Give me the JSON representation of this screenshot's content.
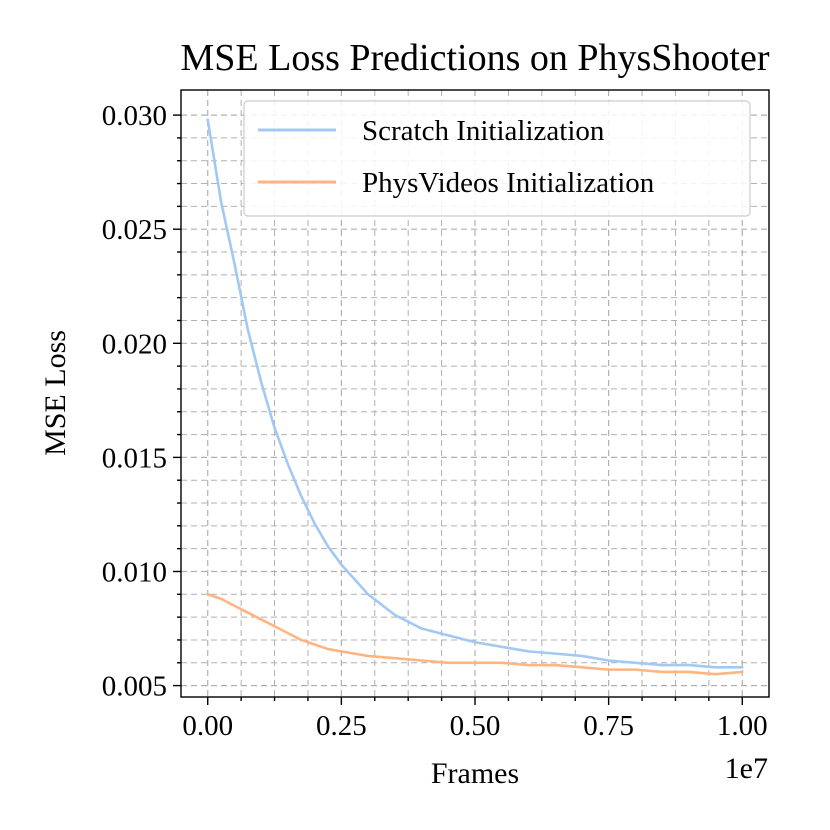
{
  "chart_data": {
    "type": "line",
    "title": "MSE Loss Predictions on PhysShooter",
    "xlabel": "Frames",
    "ylabel": "MSE Loss",
    "x_offset_label": "1e7",
    "xlim": [
      -0.05,
      1.05
    ],
    "ylim": [
      0.0045,
      0.0311
    ],
    "x_ticks": [
      0.0,
      0.25,
      0.5,
      0.75,
      1.0
    ],
    "x_tick_labels": [
      "0.00",
      "0.25",
      "0.50",
      "0.75",
      "1.00"
    ],
    "x_minor_ticks": [
      0.0625,
      0.125,
      0.1875,
      0.3125,
      0.375,
      0.4375,
      0.5625,
      0.625,
      0.6875,
      0.8125,
      0.875,
      0.9375
    ],
    "y_ticks": [
      0.005,
      0.01,
      0.015,
      0.02,
      0.025,
      0.03
    ],
    "y_tick_labels": [
      "0.005",
      "0.010",
      "0.015",
      "0.020",
      "0.025",
      "0.030"
    ],
    "y_minor_ticks": [
      0.006,
      0.007,
      0.008,
      0.009,
      0.011,
      0.012,
      0.013,
      0.014,
      0.016,
      0.017,
      0.018,
      0.019,
      0.021,
      0.022,
      0.023,
      0.024,
      0.026,
      0.027,
      0.028,
      0.029
    ],
    "grid": true,
    "legend_position": "top-right",
    "series": [
      {
        "name": "Scratch Initialization",
        "color": "#a1c9f4",
        "x": [
          0.0,
          0.025,
          0.05,
          0.075,
          0.1,
          0.125,
          0.15,
          0.175,
          0.2,
          0.225,
          0.25,
          0.3,
          0.35,
          0.4,
          0.45,
          0.5,
          0.55,
          0.6,
          0.65,
          0.7,
          0.75,
          0.8,
          0.85,
          0.9,
          0.95,
          1.0
        ],
        "values": [
          0.0298,
          0.0262,
          0.0235,
          0.0206,
          0.0183,
          0.0163,
          0.0147,
          0.0133,
          0.0121,
          0.0111,
          0.0103,
          0.009,
          0.0081,
          0.0075,
          0.0072,
          0.0069,
          0.0067,
          0.0065,
          0.0064,
          0.0063,
          0.0061,
          0.006,
          0.0059,
          0.0059,
          0.0058,
          0.0058
        ]
      },
      {
        "name": "PhysVideos Initialization",
        "color": "#ffb482",
        "x": [
          0.0,
          0.025,
          0.05,
          0.075,
          0.1,
          0.125,
          0.15,
          0.175,
          0.2,
          0.225,
          0.25,
          0.3,
          0.35,
          0.4,
          0.45,
          0.5,
          0.55,
          0.6,
          0.65,
          0.7,
          0.75,
          0.8,
          0.85,
          0.9,
          0.95,
          1.0
        ],
        "values": [
          0.009,
          0.0088,
          0.0085,
          0.0082,
          0.0079,
          0.0076,
          0.0073,
          0.007,
          0.0068,
          0.0066,
          0.0065,
          0.0063,
          0.0062,
          0.0061,
          0.006,
          0.006,
          0.006,
          0.0059,
          0.0059,
          0.0058,
          0.0057,
          0.0057,
          0.0056,
          0.0056,
          0.0055,
          0.0056
        ]
      }
    ]
  }
}
